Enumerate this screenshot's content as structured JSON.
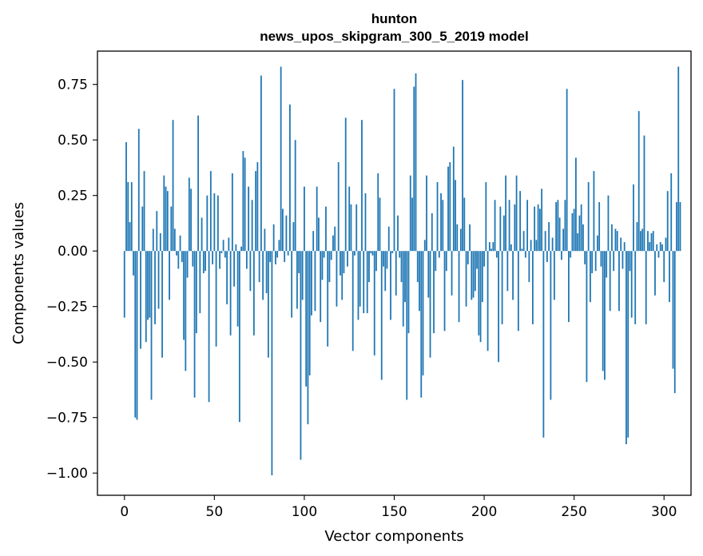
{
  "chart_data": {
    "type": "bar",
    "title": "hunton",
    "subtitle": "news_upos_skipgram_300_5_2019 model",
    "xlabel": "Vector components",
    "ylabel": "Components values",
    "xlim": [
      -15,
      315
    ],
    "ylim": [
      -1.1,
      0.9
    ],
    "x_ticks": [
      0,
      50,
      100,
      150,
      200,
      250,
      300
    ],
    "x_tick_labels": [
      "0",
      "50",
      "100",
      "150",
      "200",
      "250",
      "300"
    ],
    "y_ticks": [
      0.75,
      0.5,
      0.25,
      0.0,
      -0.25,
      -0.5,
      -0.75,
      -1.0
    ],
    "y_tick_labels": [
      "0.75",
      "0.50",
      "0.25",
      "0.00",
      "−0.25",
      "−0.50",
      "−0.75",
      "−1.00"
    ],
    "bar_color": "#1f77b4",
    "grid": false,
    "series": [
      {
        "name": "hunton",
        "values": [
          -0.3,
          0.49,
          0.31,
          0.13,
          0.31,
          -0.11,
          -0.75,
          -0.76,
          0.55,
          -0.44,
          0.2,
          0.36,
          -0.41,
          -0.31,
          -0.3,
          -0.67,
          0.1,
          -0.33,
          0.18,
          -0.26,
          0.08,
          -0.48,
          0.34,
          0.29,
          0.27,
          -0.22,
          0.2,
          0.59,
          0.1,
          -0.02,
          -0.08,
          0.07,
          -0.05,
          -0.4,
          -0.54,
          -0.12,
          0.33,
          0.28,
          -0.07,
          -0.66,
          -0.37,
          0.61,
          -0.28,
          0.15,
          -0.1,
          -0.09,
          0.25,
          -0.68,
          0.36,
          -0.06,
          0.26,
          -0.43,
          0.25,
          -0.08,
          -0.01,
          0.05,
          -0.03,
          -0.24,
          0.06,
          -0.38,
          0.35,
          -0.16,
          0.03,
          -0.34,
          -0.77,
          0.02,
          0.45,
          0.42,
          -0.08,
          0.29,
          -0.18,
          0.23,
          -0.38,
          0.36,
          0.4,
          -0.14,
          0.79,
          -0.22,
          0.1,
          -0.19,
          -0.48,
          -0.05,
          -1.01,
          0.12,
          -0.06,
          -0.03,
          0.05,
          0.83,
          0.19,
          -0.05,
          0.16,
          -0.02,
          0.66,
          -0.3,
          0.13,
          0.5,
          -0.26,
          -0.1,
          -0.94,
          -0.22,
          0.29,
          -0.61,
          -0.78,
          -0.56,
          -0.29,
          0.09,
          -0.27,
          0.29,
          0.15,
          -0.32,
          -0.13,
          -0.03,
          0.2,
          -0.43,
          -0.14,
          -0.04,
          0.07,
          0.11,
          -0.25,
          0.4,
          -0.11,
          -0.22,
          -0.1,
          0.6,
          -0.07,
          0.29,
          0.21,
          -0.45,
          -0.02,
          0.21,
          -0.31,
          -0.25,
          0.59,
          -0.28,
          0.26,
          -0.28,
          -0.14,
          -0.01,
          -0.02,
          -0.47,
          -0.09,
          0.35,
          0.24,
          -0.58,
          -0.07,
          -0.18,
          -0.08,
          0.11,
          -0.31,
          -0.01,
          0.73,
          -0.2,
          0.16,
          -0.03,
          -0.14,
          -0.34,
          -0.23,
          -0.67,
          -0.37,
          0.34,
          0.24,
          0.74,
          0.8,
          -0.14,
          -0.27,
          -0.66,
          -0.56,
          0.05,
          0.34,
          -0.21,
          -0.48,
          0.17,
          -0.37,
          -0.09,
          0.31,
          -0.03,
          0.26,
          0.23,
          -0.36,
          -0.09,
          0.38,
          0.4,
          -0.2,
          0.47,
          0.32,
          0.12,
          -0.32,
          0.1,
          0.77,
          0.24,
          -0.25,
          -0.06,
          0.12,
          -0.22,
          -0.21,
          -0.18,
          -0.08,
          -0.38,
          -0.41,
          -0.23,
          -0.07,
          0.31,
          -0.45,
          0.04,
          0.01,
          0.04,
          0.23,
          -0.03,
          -0.5,
          0.2,
          -0.33,
          0.16,
          0.34,
          -0.18,
          0.23,
          0.03,
          -0.22,
          0.21,
          0.34,
          -0.36,
          0.27,
          0.01,
          0.09,
          -0.03,
          0.23,
          -0.14,
          0.05,
          -0.33,
          0.2,
          0.05,
          0.21,
          0.19,
          0.28,
          -0.84,
          0.09,
          -0.05,
          0.13,
          -0.67,
          0.06,
          -0.22,
          0.22,
          0.23,
          0.15,
          -0.04,
          0.1,
          0.23,
          0.73,
          -0.32,
          -0.03,
          0.17,
          0.19,
          0.42,
          0.08,
          0.16,
          0.21,
          0.12,
          -0.06,
          -0.59,
          0.31,
          -0.23,
          -0.1,
          0.36,
          -0.09,
          0.07,
          0.22,
          -0.07,
          -0.54,
          -0.58,
          -0.12,
          0.25,
          -0.27,
          0.12,
          -0.09,
          0.1,
          0.09,
          -0.27,
          0.06,
          -0.08,
          0.04,
          -0.87,
          -0.84,
          -0.09,
          -0.3,
          0.3,
          -0.33,
          0.13,
          0.63,
          0.09,
          0.1,
          0.52,
          -0.33,
          0.09,
          0.04,
          0.08,
          0.09,
          -0.2,
          0.03,
          -0.03,
          0.04,
          0.03,
          -0.14,
          0.06,
          0.27,
          -0.23,
          0.35,
          -0.53,
          -0.64,
          0.22,
          0.83,
          0.22
        ]
      }
    ]
  }
}
